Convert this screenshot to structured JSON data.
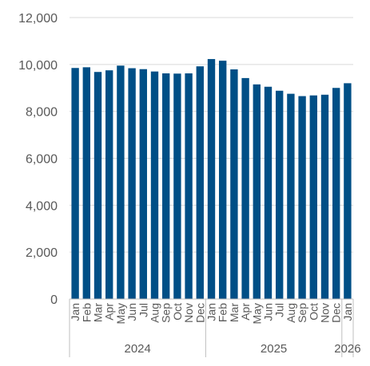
{
  "chart_data": {
    "type": "bar",
    "title": "",
    "xlabel": "",
    "ylabel": "",
    "ylim": [
      0,
      12000
    ],
    "yticks": [
      0,
      2000,
      4000,
      6000,
      8000,
      10000,
      12000
    ],
    "ytick_labels": [
      "0",
      "2,000",
      "4,000",
      "6,000",
      "8,000",
      "10,000",
      "12,000"
    ],
    "grid": true,
    "legend": "none",
    "bar_color": "#004F86",
    "categories": [
      "Jan",
      "Feb",
      "Mar",
      "Apr",
      "May",
      "Jun",
      "Jul",
      "Aug",
      "Sep",
      "Oct",
      "Nov",
      "Dec",
      "Jan",
      "Feb",
      "Mar",
      "Apr",
      "May",
      "Jun",
      "Jul",
      "Aug",
      "Sep",
      "Oct",
      "Nov",
      "Dec",
      "Jan"
    ],
    "years": [
      {
        "label": "2024",
        "start": 0,
        "count": 12
      },
      {
        "label": "2025",
        "start": 12,
        "count": 12
      },
      {
        "label": "2026",
        "start": 24,
        "count": 1
      }
    ],
    "values": [
      9850,
      9880,
      9680,
      9750,
      9950,
      9840,
      9800,
      9700,
      9620,
      9610,
      9620,
      9920,
      10230,
      10160,
      9790,
      9420,
      9150,
      9050,
      8880,
      8750,
      8650,
      8680,
      8710,
      9000,
      9200
    ]
  }
}
